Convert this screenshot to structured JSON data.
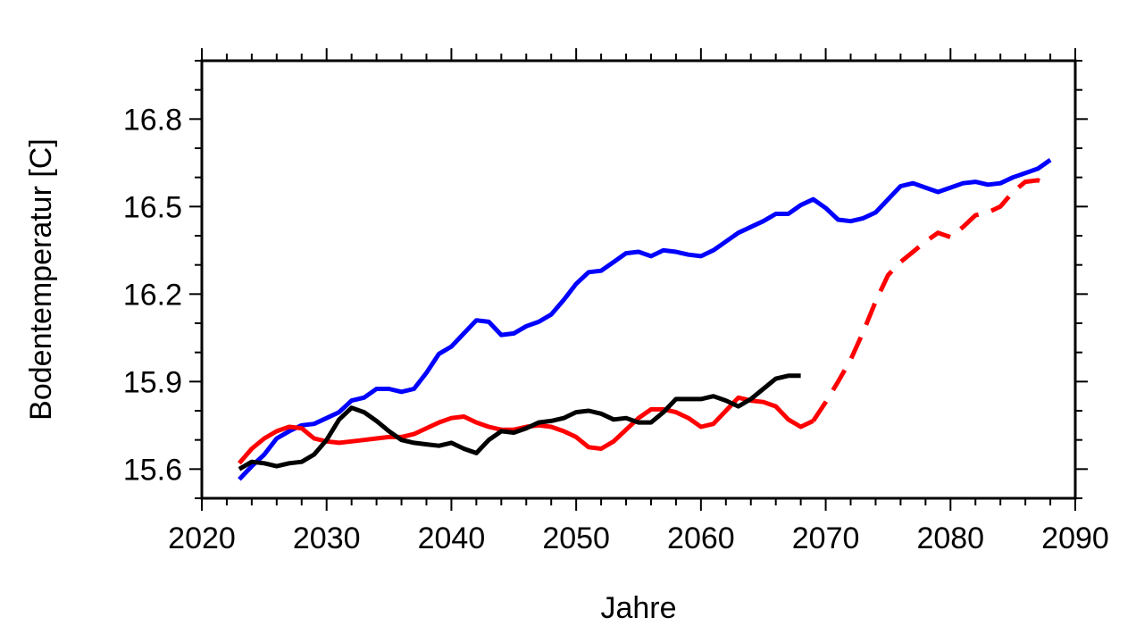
{
  "chart_data": {
    "type": "line",
    "title": "",
    "xlabel": "Jahre",
    "ylabel": "Bodentemperatur [C]",
    "xlim": [
      2020,
      2090
    ],
    "ylim": [
      15.5,
      17.0
    ],
    "x_ticks": [
      2020,
      2030,
      2040,
      2050,
      2060,
      2070,
      2080,
      2090
    ],
    "y_ticks": [
      15.6,
      15.9,
      16.2,
      16.5,
      16.8
    ],
    "x_tick_labels": [
      "2020",
      "2030",
      "2040",
      "2050",
      "2060",
      "2070",
      "2080",
      "2090"
    ],
    "y_tick_labels": [
      "15.6",
      "15.9",
      "16.2",
      "16.5",
      "16.8"
    ],
    "grid": false,
    "legend": "none",
    "series": [
      {
        "color": "#0000ff",
        "style": "solid",
        "x": [
          2023,
          2024,
          2025,
          2026,
          2027,
          2028,
          2029,
          2030,
          2031,
          2032,
          2033,
          2034,
          2035,
          2036,
          2037,
          2038,
          2039,
          2040,
          2041,
          2042,
          2043,
          2044,
          2045,
          2046,
          2047,
          2048,
          2049,
          2050,
          2051,
          2052,
          2053,
          2054,
          2055,
          2056,
          2057,
          2058,
          2059,
          2060,
          2061,
          2062,
          2063,
          2064,
          2065,
          2066,
          2067,
          2068,
          2069,
          2070,
          2071,
          2072,
          2073,
          2074,
          2075,
          2076,
          2077,
          2078,
          2079,
          2080,
          2081,
          2082,
          2083,
          2084,
          2085,
          2086,
          2087,
          2088
        ],
        "y": [
          15.565,
          15.61,
          15.65,
          15.705,
          15.73,
          15.75,
          15.755,
          15.775,
          15.795,
          15.835,
          15.845,
          15.875,
          15.875,
          15.865,
          15.875,
          15.93,
          15.995,
          16.02,
          16.065,
          16.11,
          16.105,
          16.06,
          16.065,
          16.09,
          16.105,
          16.13,
          16.18,
          16.235,
          16.275,
          16.28,
          16.31,
          16.34,
          16.345,
          16.33,
          16.35,
          16.345,
          16.335,
          16.33,
          16.35,
          16.38,
          16.41,
          16.43,
          16.45,
          16.475,
          16.475,
          16.505,
          16.525,
          16.495,
          16.455,
          16.45,
          16.46,
          16.48,
          16.525,
          16.57,
          16.58,
          16.565,
          16.55,
          16.565,
          16.58,
          16.585,
          16.575,
          16.58,
          16.6,
          16.615,
          16.63,
          16.66
        ]
      },
      {
        "color": "#ff0000",
        "style": "solid",
        "x": [
          2023,
          2024,
          2025,
          2026,
          2027,
          2028,
          2029,
          2030,
          2031,
          2032,
          2033,
          2034,
          2035,
          2036,
          2037,
          2038,
          2039,
          2040,
          2041,
          2042,
          2043,
          2044,
          2045,
          2046,
          2047,
          2048,
          2049,
          2050,
          2051,
          2052,
          2053,
          2054,
          2055,
          2056,
          2057,
          2058,
          2059,
          2060,
          2061,
          2062,
          2063,
          2064,
          2065,
          2066,
          2067,
          2068,
          2069
        ],
        "y": [
          15.62,
          15.67,
          15.705,
          15.73,
          15.745,
          15.74,
          15.705,
          15.695,
          15.69,
          15.695,
          15.7,
          15.705,
          15.71,
          15.71,
          15.72,
          15.74,
          15.76,
          15.775,
          15.78,
          15.76,
          15.745,
          15.735,
          15.735,
          15.745,
          15.75,
          15.745,
          15.73,
          15.71,
          15.675,
          15.67,
          15.695,
          15.735,
          15.775,
          15.805,
          15.805,
          15.795,
          15.775,
          15.745,
          15.755,
          15.8,
          15.845,
          15.835,
          15.83,
          15.815,
          15.77,
          15.745,
          15.765
        ]
      },
      {
        "color": "#ff0000",
        "style": "dashed",
        "x": [
          2069,
          2070,
          2071,
          2072,
          2073,
          2074,
          2075,
          2076,
          2077,
          2078,
          2079,
          2080,
          2081,
          2082,
          2083,
          2084,
          2085,
          2086,
          2087,
          2088
        ],
        "y": [
          15.765,
          15.83,
          15.9,
          15.975,
          16.07,
          16.175,
          16.265,
          16.31,
          16.345,
          16.38,
          16.41,
          16.395,
          16.43,
          16.47,
          16.48,
          16.5,
          16.55,
          16.585,
          16.59,
          16.575
        ]
      },
      {
        "color": "#000000",
        "style": "solid",
        "x": [
          2023,
          2024,
          2025,
          2026,
          2027,
          2028,
          2029,
          2030,
          2031,
          2032,
          2033,
          2034,
          2035,
          2036,
          2037,
          2038,
          2039,
          2040,
          2041,
          2042,
          2043,
          2044,
          2045,
          2046,
          2047,
          2048,
          2049,
          2050,
          2051,
          2052,
          2053,
          2054,
          2055,
          2056,
          2057,
          2058,
          2059,
          2060,
          2061,
          2062,
          2063,
          2064,
          2065,
          2066,
          2067,
          2068
        ],
        "y": [
          15.6,
          15.625,
          15.62,
          15.61,
          15.62,
          15.625,
          15.65,
          15.7,
          15.77,
          15.81,
          15.795,
          15.765,
          15.73,
          15.7,
          15.69,
          15.685,
          15.68,
          15.69,
          15.67,
          15.655,
          15.7,
          15.73,
          15.725,
          15.74,
          15.76,
          15.765,
          15.775,
          15.795,
          15.8,
          15.79,
          15.77,
          15.775,
          15.76,
          15.76,
          15.795,
          15.84,
          15.84,
          15.84,
          15.85,
          15.835,
          15.815,
          15.84,
          15.875,
          15.91,
          15.92,
          15.92
        ]
      }
    ]
  }
}
